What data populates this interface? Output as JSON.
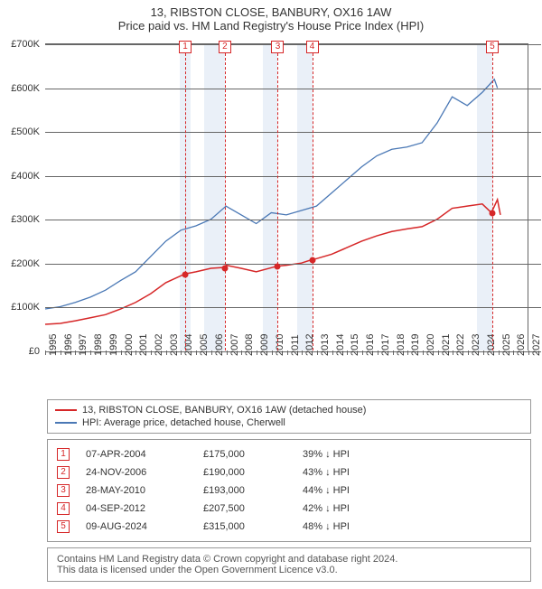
{
  "title": {
    "line1": "13, RIBSTON CLOSE, BANBURY, OX16 1AW",
    "line2": "Price paid vs. HM Land Registry's House Price Index (HPI)"
  },
  "chart": {
    "type": "line",
    "background_color": "#ffffff",
    "grid_color": "#666666",
    "shade_color": "#eaf0f8",
    "x": {
      "min": 1995,
      "max": 2027,
      "ticks": [
        1995,
        1996,
        1997,
        1998,
        1999,
        2000,
        2001,
        2002,
        2003,
        2004,
        2005,
        2006,
        2007,
        2008,
        2009,
        2010,
        2011,
        2012,
        2013,
        2014,
        2015,
        2016,
        2017,
        2018,
        2019,
        2020,
        2021,
        2022,
        2023,
        2024,
        2025,
        2026,
        2027
      ]
    },
    "y": {
      "min": 0,
      "max": 700000,
      "ticks": [
        0,
        100000,
        200000,
        300000,
        400000,
        500000,
        600000,
        700000
      ],
      "tick_labels": [
        "£0",
        "£100K",
        "£200K",
        "£300K",
        "£400K",
        "£500K",
        "£600K",
        "£700K"
      ]
    },
    "shaded_ranges": [
      {
        "from": 2003.9,
        "to": 2004.6
      },
      {
        "from": 2005.5,
        "to": 2006.9
      },
      {
        "from": 2009.4,
        "to": 2010.4
      },
      {
        "from": 2011.7,
        "to": 2012.7
      },
      {
        "from": 2023.6,
        "to": 2024.6
      }
    ],
    "series": [
      {
        "id": "property",
        "label": "13, RIBSTON CLOSE, BANBURY, OX16 1AW (detached house)",
        "color": "#d62728",
        "line_width": 1.5,
        "points": [
          [
            1995,
            60000
          ],
          [
            1996,
            62000
          ],
          [
            1997,
            68000
          ],
          [
            1998,
            75000
          ],
          [
            1999,
            82000
          ],
          [
            2000,
            95000
          ],
          [
            2001,
            110000
          ],
          [
            2002,
            130000
          ],
          [
            2003,
            155000
          ],
          [
            2004.27,
            175000
          ],
          [
            2005,
            180000
          ],
          [
            2006,
            188000
          ],
          [
            2006.9,
            190000
          ],
          [
            2007,
            195000
          ],
          [
            2008,
            188000
          ],
          [
            2009,
            180000
          ],
          [
            2010.4,
            193000
          ],
          [
            2011,
            195000
          ],
          [
            2012,
            200000
          ],
          [
            2012.68,
            207500
          ],
          [
            2013,
            210000
          ],
          [
            2014,
            220000
          ],
          [
            2015,
            235000
          ],
          [
            2016,
            250000
          ],
          [
            2017,
            262000
          ],
          [
            2018,
            272000
          ],
          [
            2019,
            278000
          ],
          [
            2020,
            283000
          ],
          [
            2021,
            300000
          ],
          [
            2022,
            325000
          ],
          [
            2023,
            330000
          ],
          [
            2024,
            335000
          ],
          [
            2024.6,
            315000
          ],
          [
            2025,
            345000
          ],
          [
            2025.2,
            310000
          ]
        ],
        "markers": [
          {
            "x": 2004.27,
            "y": 175000
          },
          {
            "x": 2006.9,
            "y": 190000
          },
          {
            "x": 2010.4,
            "y": 193000
          },
          {
            "x": 2012.68,
            "y": 207500
          },
          {
            "x": 2024.6,
            "y": 315000
          }
        ]
      },
      {
        "id": "hpi",
        "label": "HPI: Average price, detached house, Cherwell",
        "color": "#4a78b5",
        "line_width": 1.3,
        "points": [
          [
            1995,
            95000
          ],
          [
            1996,
            100000
          ],
          [
            1997,
            110000
          ],
          [
            1998,
            122000
          ],
          [
            1999,
            138000
          ],
          [
            2000,
            160000
          ],
          [
            2001,
            180000
          ],
          [
            2002,
            215000
          ],
          [
            2003,
            250000
          ],
          [
            2004,
            275000
          ],
          [
            2005,
            285000
          ],
          [
            2006,
            300000
          ],
          [
            2007,
            330000
          ],
          [
            2008,
            310000
          ],
          [
            2009,
            290000
          ],
          [
            2010,
            315000
          ],
          [
            2011,
            310000
          ],
          [
            2012,
            320000
          ],
          [
            2013,
            330000
          ],
          [
            2014,
            360000
          ],
          [
            2015,
            390000
          ],
          [
            2016,
            420000
          ],
          [
            2017,
            445000
          ],
          [
            2018,
            460000
          ],
          [
            2019,
            465000
          ],
          [
            2020,
            475000
          ],
          [
            2021,
            520000
          ],
          [
            2022,
            580000
          ],
          [
            2023,
            560000
          ],
          [
            2024,
            590000
          ],
          [
            2024.8,
            620000
          ],
          [
            2025,
            600000
          ]
        ]
      }
    ],
    "event_lines": [
      {
        "n": "1",
        "x": 2004.27,
        "color": "#d62728"
      },
      {
        "n": "2",
        "x": 2006.9,
        "color": "#d62728"
      },
      {
        "n": "3",
        "x": 2010.4,
        "color": "#d62728"
      },
      {
        "n": "4",
        "x": 2012.68,
        "color": "#d62728"
      },
      {
        "n": "5",
        "x": 2024.6,
        "color": "#d62728"
      }
    ]
  },
  "legend": [
    {
      "color": "#d62728",
      "label": "13, RIBSTON CLOSE, BANBURY, OX16 1AW (detached house)"
    },
    {
      "color": "#4a78b5",
      "label": "HPI: Average price, detached house, Cherwell"
    }
  ],
  "events": [
    {
      "n": "1",
      "date": "07-APR-2004",
      "price": "£175,000",
      "diff": "39% ↓ HPI"
    },
    {
      "n": "2",
      "date": "24-NOV-2006",
      "price": "£190,000",
      "diff": "43% ↓ HPI"
    },
    {
      "n": "3",
      "date": "28-MAY-2010",
      "price": "£193,000",
      "diff": "44% ↓ HPI"
    },
    {
      "n": "4",
      "date": "04-SEP-2012",
      "price": "£207,500",
      "diff": "42% ↓ HPI"
    },
    {
      "n": "5",
      "date": "09-AUG-2024",
      "price": "£315,000",
      "diff": "48% ↓ HPI"
    }
  ],
  "attribution": {
    "line1": "Contains HM Land Registry data © Crown copyright and database right 2024.",
    "line2": "This data is licensed under the Open Government Licence v3.0."
  }
}
